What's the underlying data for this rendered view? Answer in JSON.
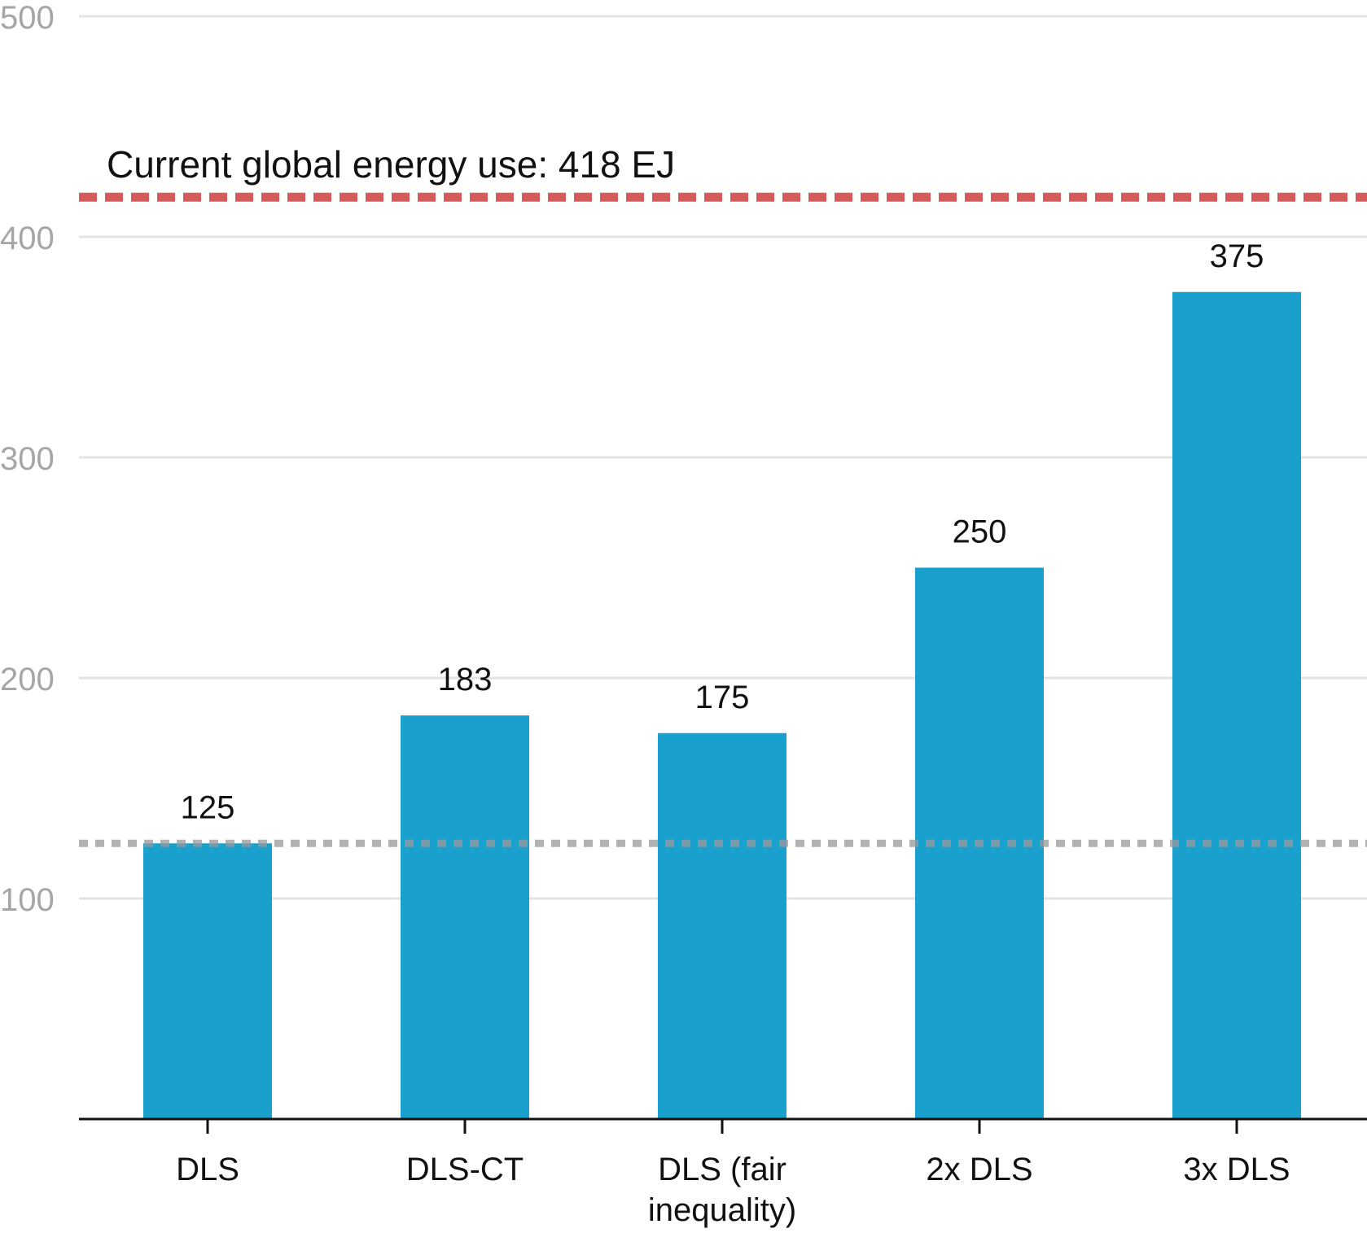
{
  "chart_data": {
    "type": "bar",
    "title": "",
    "xlabel": "",
    "ylabel": "",
    "categories": [
      "DLS",
      "DLS-CT",
      "DLS (fair inequality)",
      "2x DLS",
      "3x DLS"
    ],
    "category_label_lines": [
      [
        "DLS"
      ],
      [
        "DLS-CT"
      ],
      [
        "DLS (fair",
        "inequality)"
      ],
      [
        "2x DLS"
      ],
      [
        "3x DLS"
      ]
    ],
    "values": [
      125,
      183,
      175,
      250,
      375
    ],
    "value_labels": [
      "125",
      "183",
      "175",
      "250",
      "375"
    ],
    "ylim": [
      0,
      500
    ],
    "yticks": [
      100,
      200,
      300,
      400,
      500
    ],
    "ytick_labels": [
      "100",
      "200",
      "300",
      "400",
      "500"
    ],
    "grid": true,
    "bar_color": "#1aa0cd",
    "reference_lines": [
      {
        "value": 418,
        "label": "Current global energy use: 418 EJ",
        "style": "dashed",
        "color": "#d65c5c"
      },
      {
        "value": 125,
        "label": "",
        "style": "dotted",
        "color": "#999999"
      }
    ]
  }
}
